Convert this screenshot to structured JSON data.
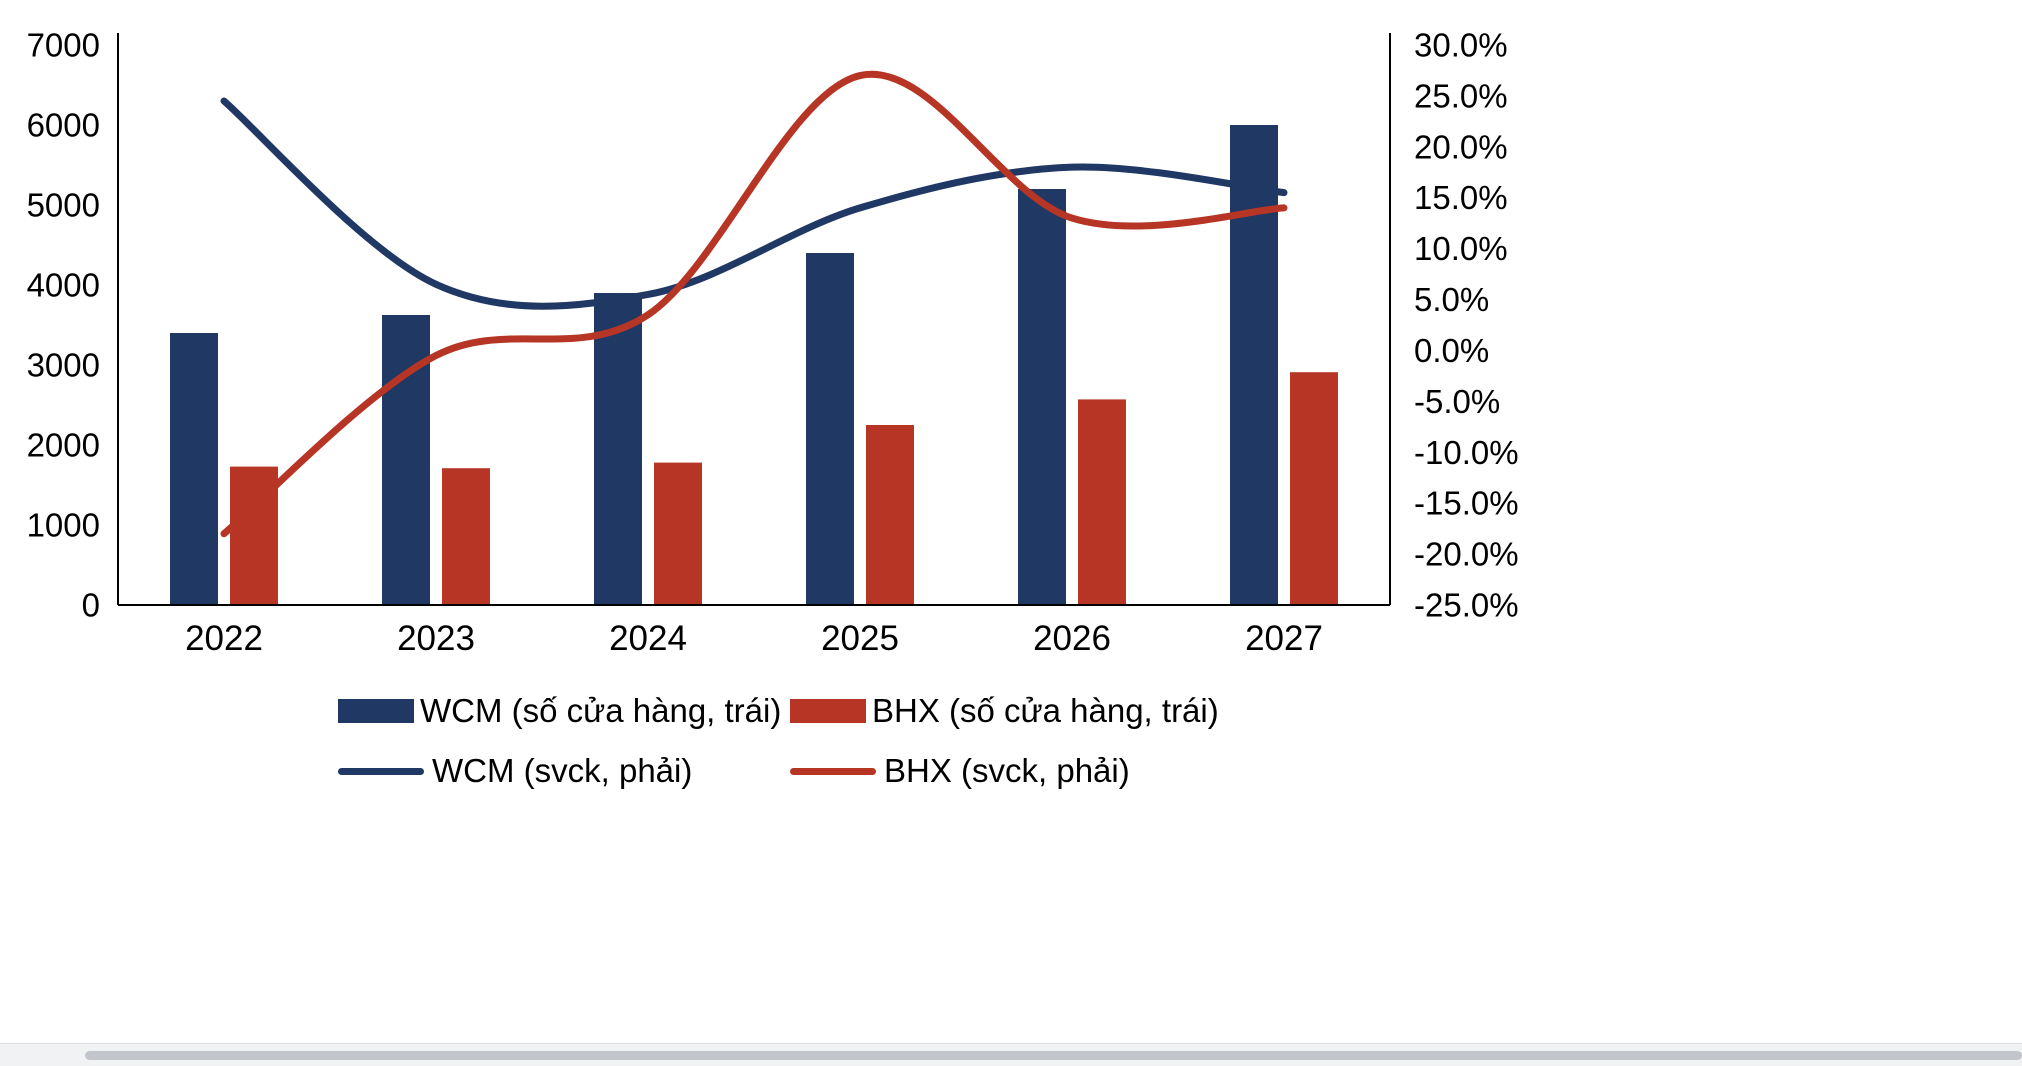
{
  "chart_data": {
    "type": "bar",
    "subtype": "combo-bar-line-dual-axis",
    "categories": [
      "2022",
      "2023",
      "2024",
      "2025",
      "2026",
      "2027"
    ],
    "bar_series": [
      {
        "name": "WCM (số cửa hàng, trái)",
        "axis": "left",
        "color": "#1F3864",
        "values": [
          3400,
          3625,
          3900,
          4400,
          5200,
          6000
        ]
      },
      {
        "name": "BHX (số cửa hàng, trái)",
        "axis": "left",
        "color": "#B63524",
        "values": [
          1730,
          1710,
          1780,
          2250,
          2570,
          2910
        ]
      }
    ],
    "line_series": [
      {
        "name": "WCM (svck, phải)",
        "axis": "right",
        "color": "#1F3864",
        "values": [
          24.5,
          6.5,
          5.5,
          14.0,
          18.0,
          15.5
        ]
      },
      {
        "name": "BHX (svck, phải)",
        "axis": "right",
        "color": "#B63524",
        "values": [
          -18.0,
          -0.5,
          3.5,
          27.0,
          13.0,
          14.0
        ]
      }
    ],
    "left_axis": {
      "min": 0,
      "max": 7000,
      "step": 1000,
      "tick_labels": [
        "0",
        "1000",
        "2000",
        "3000",
        "4000",
        "5000",
        "6000",
        "7000"
      ]
    },
    "right_axis": {
      "min": -25,
      "max": 30,
      "step": 5,
      "tick_labels": [
        "-25.0%",
        "-20.0%",
        "-15.0%",
        "-10.0%",
        "-5.0%",
        "0.0%",
        "5.0%",
        "10.0%",
        "15.0%",
        "20.0%",
        "25.0%",
        "30.0%"
      ]
    },
    "grid": false,
    "legend_position": "bottom",
    "legend": [
      {
        "label": "WCM (số cửa hàng, trái)",
        "swatch": "bar",
        "color": "#1F3864"
      },
      {
        "label": "BHX (số cửa hàng, trái)",
        "swatch": "bar",
        "color": "#B63524"
      },
      {
        "label": "WCM (svck, phải)",
        "swatch": "line",
        "color": "#1F3864"
      },
      {
        "label": "BHX (svck, phải)",
        "swatch": "line",
        "color": "#B63524"
      }
    ],
    "colors": {
      "wcm_navy": "#1F3864",
      "bhx_red": "#B63524",
      "axis_line": "#000000"
    }
  }
}
